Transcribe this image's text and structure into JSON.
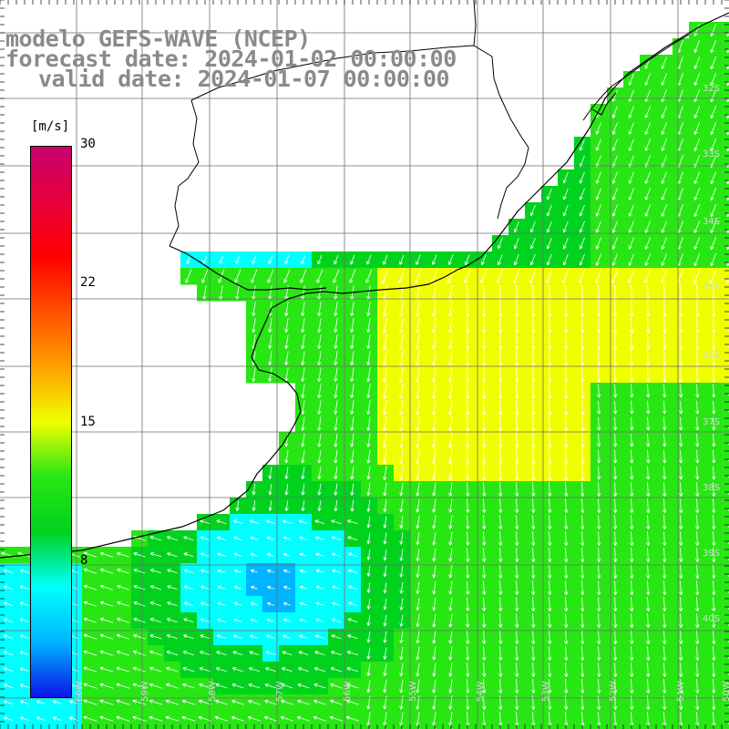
{
  "header": {
    "model_line": "modelo GEFS-WAVE (NCEP)",
    "forecast_line": "forecast date: 2024-01-02 00:00:00",
    "valid_line": "valid date: 2024-01-07 00:00:00"
  },
  "colorbar": {
    "unit": "[m/s]",
    "ticks": [
      "30",
      "22",
      "15",
      "8"
    ],
    "stops": [
      "#0a14e6",
      "#00b4ff",
      "#00ffff",
      "#00d21e",
      "#28e614",
      "#f0ff00",
      "#ffa000",
      "#ff5000",
      "#ff0000",
      "#e6003c",
      "#c8006e"
    ]
  },
  "grid": {
    "lat_labels": [
      "32S",
      "33S",
      "34S",
      "35S",
      "36S",
      "37S",
      "38S",
      "39S",
      "40S"
    ],
    "lon_labels": [
      "60W",
      "59W",
      "58W",
      "57W",
      "56W",
      "55W",
      "54W",
      "53W",
      "52W",
      "51W",
      "50W"
    ]
  },
  "legend_colors": {
    "land": "#ffffff",
    "coastline": "#000000",
    "grid_lines": "#6e6e6e",
    "arrows": "#ffffff"
  }
}
